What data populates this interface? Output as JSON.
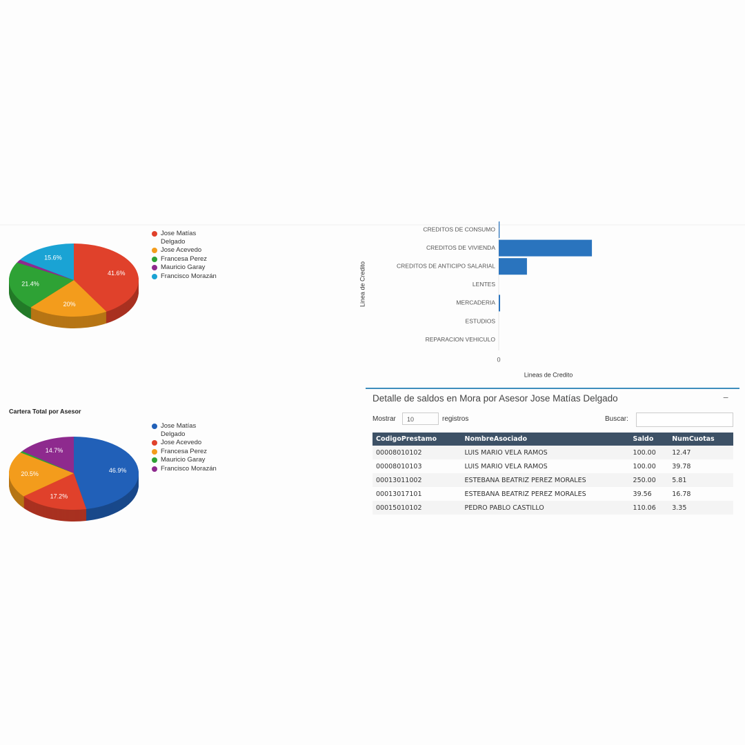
{
  "chart_data": [
    {
      "type": "pie",
      "categories": [
        "Jose Matías Delgado",
        "Jose Acevedo",
        "Francesa Perez",
        "Mauricio Garay",
        "Francisco Morazán"
      ],
      "values": [
        41.6,
        20,
        21.4,
        1.4,
        15.6
      ],
      "value_labels": [
        "41.6%",
        "20%",
        "21.4%",
        null,
        "15.6%"
      ],
      "colors": [
        "#e0412b",
        "#f39c1c",
        "#2ea235",
        "#8e2a8e",
        "#1aa3d4"
      ]
    },
    {
      "type": "pie",
      "title": "Cartera Total por Asesor",
      "categories": [
        "Jose Matías Delgado",
        "Jose Acevedo",
        "Francesa Perez",
        "Mauricio Garay",
        "Francisco Morazán"
      ],
      "values": [
        46.9,
        17.2,
        20.5,
        0.7,
        14.7
      ],
      "value_labels": [
        "46.9%",
        "17.2%",
        "20.5%",
        null,
        "14.7%"
      ],
      "colors": [
        "#2160b8",
        "#e0412b",
        "#f39c1c",
        "#2ea235",
        "#8e2a8e"
      ]
    },
    {
      "type": "bar",
      "orientation": "horizontal",
      "x_label": "Lineas de Credito",
      "y_label": "Linea de Credito",
      "categories": [
        "CREDITOS DE CONSUMO",
        "CREDITOS DE VIVIENDA",
        "CREDITOS DE ANTICIPO SALARIAL",
        "LENTES",
        "MERCADERIA",
        "ESTUDIOS",
        "REPARACION VEHICULO"
      ],
      "values": [
        5,
        545,
        165,
        0,
        8,
        0,
        0
      ],
      "color": "#2a74be",
      "xlim": [
        0,
        1400
      ],
      "xticks": [
        0
      ]
    }
  ],
  "table_panel": {
    "title": "Detalle de saldos en Mora por Asesor Jose Matías Delgado",
    "collapse": "−",
    "length_before": "Mostrar",
    "length_value": "10",
    "length_after": "registros",
    "search_label": "Buscar:",
    "columns": [
      "CodigoPrestamo",
      "NombreAsociado",
      "Saldo",
      "NumCuotas"
    ],
    "rows": [
      [
        "00008010102",
        "LUIS MARIO VELA RAMOS",
        "100.00",
        "12.47"
      ],
      [
        "00008010103",
        "LUIS MARIO VELA RAMOS",
        "100.00",
        "39.78"
      ],
      [
        "00013011002",
        "ESTEBANA BEATRIZ PEREZ MORALES",
        "250.00",
        "5.81"
      ],
      [
        "00013017101",
        "ESTEBANA BEATRIZ PEREZ MORALES",
        "39.56",
        "16.78"
      ],
      [
        "00015010102",
        "PEDRO PABLO CASTILLO",
        "110.06",
        "3.35"
      ]
    ]
  }
}
